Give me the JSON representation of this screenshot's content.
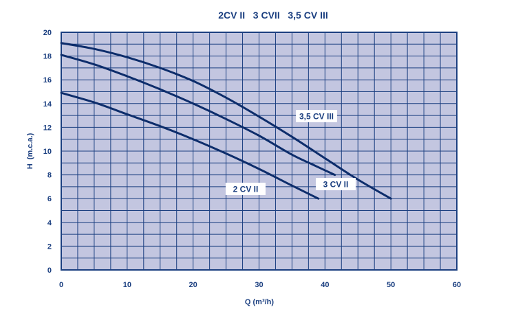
{
  "chart_data": {
    "type": "line",
    "title": "2CV II   3 CVII   3,5 CV III",
    "xlabel": "Q (m³/h)",
    "ylabel": "H  (m.c.a.)",
    "xlim": [
      0,
      60
    ],
    "ylim": [
      0,
      20
    ],
    "x_ticks": [
      0,
      10,
      20,
      30,
      40,
      50,
      60
    ],
    "y_ticks": [
      0,
      2,
      4,
      6,
      8,
      10,
      12,
      14,
      16,
      18,
      20
    ],
    "grid": true,
    "colors": {
      "plot_background": "#c3c6e0",
      "grid": "#1b3f80",
      "line": "#0d2d6b",
      "text": "#1b3f80",
      "label_box": "#ffffff"
    },
    "series": [
      {
        "name": "2 CV II",
        "x": [
          0,
          5,
          10,
          15,
          20,
          25,
          30,
          35,
          39
        ],
        "y": [
          14.9,
          14.1,
          13.1,
          12.1,
          11.0,
          9.8,
          8.5,
          7.1,
          6.0
        ]
      },
      {
        "name": "3 CV II",
        "x": [
          0,
          5,
          10,
          15,
          20,
          25,
          30,
          35,
          38,
          41.5
        ],
        "y": [
          18.1,
          17.3,
          16.3,
          15.2,
          14.0,
          12.7,
          11.3,
          9.7,
          8.9,
          8.0
        ]
      },
      {
        "name": "3,5 CV III",
        "x": [
          0,
          5,
          10,
          15,
          20,
          25,
          30,
          35,
          40,
          45,
          50
        ],
        "y": [
          19.1,
          18.6,
          17.9,
          17.0,
          15.9,
          14.5,
          12.9,
          11.2,
          9.4,
          7.6,
          6.0
        ]
      }
    ]
  }
}
